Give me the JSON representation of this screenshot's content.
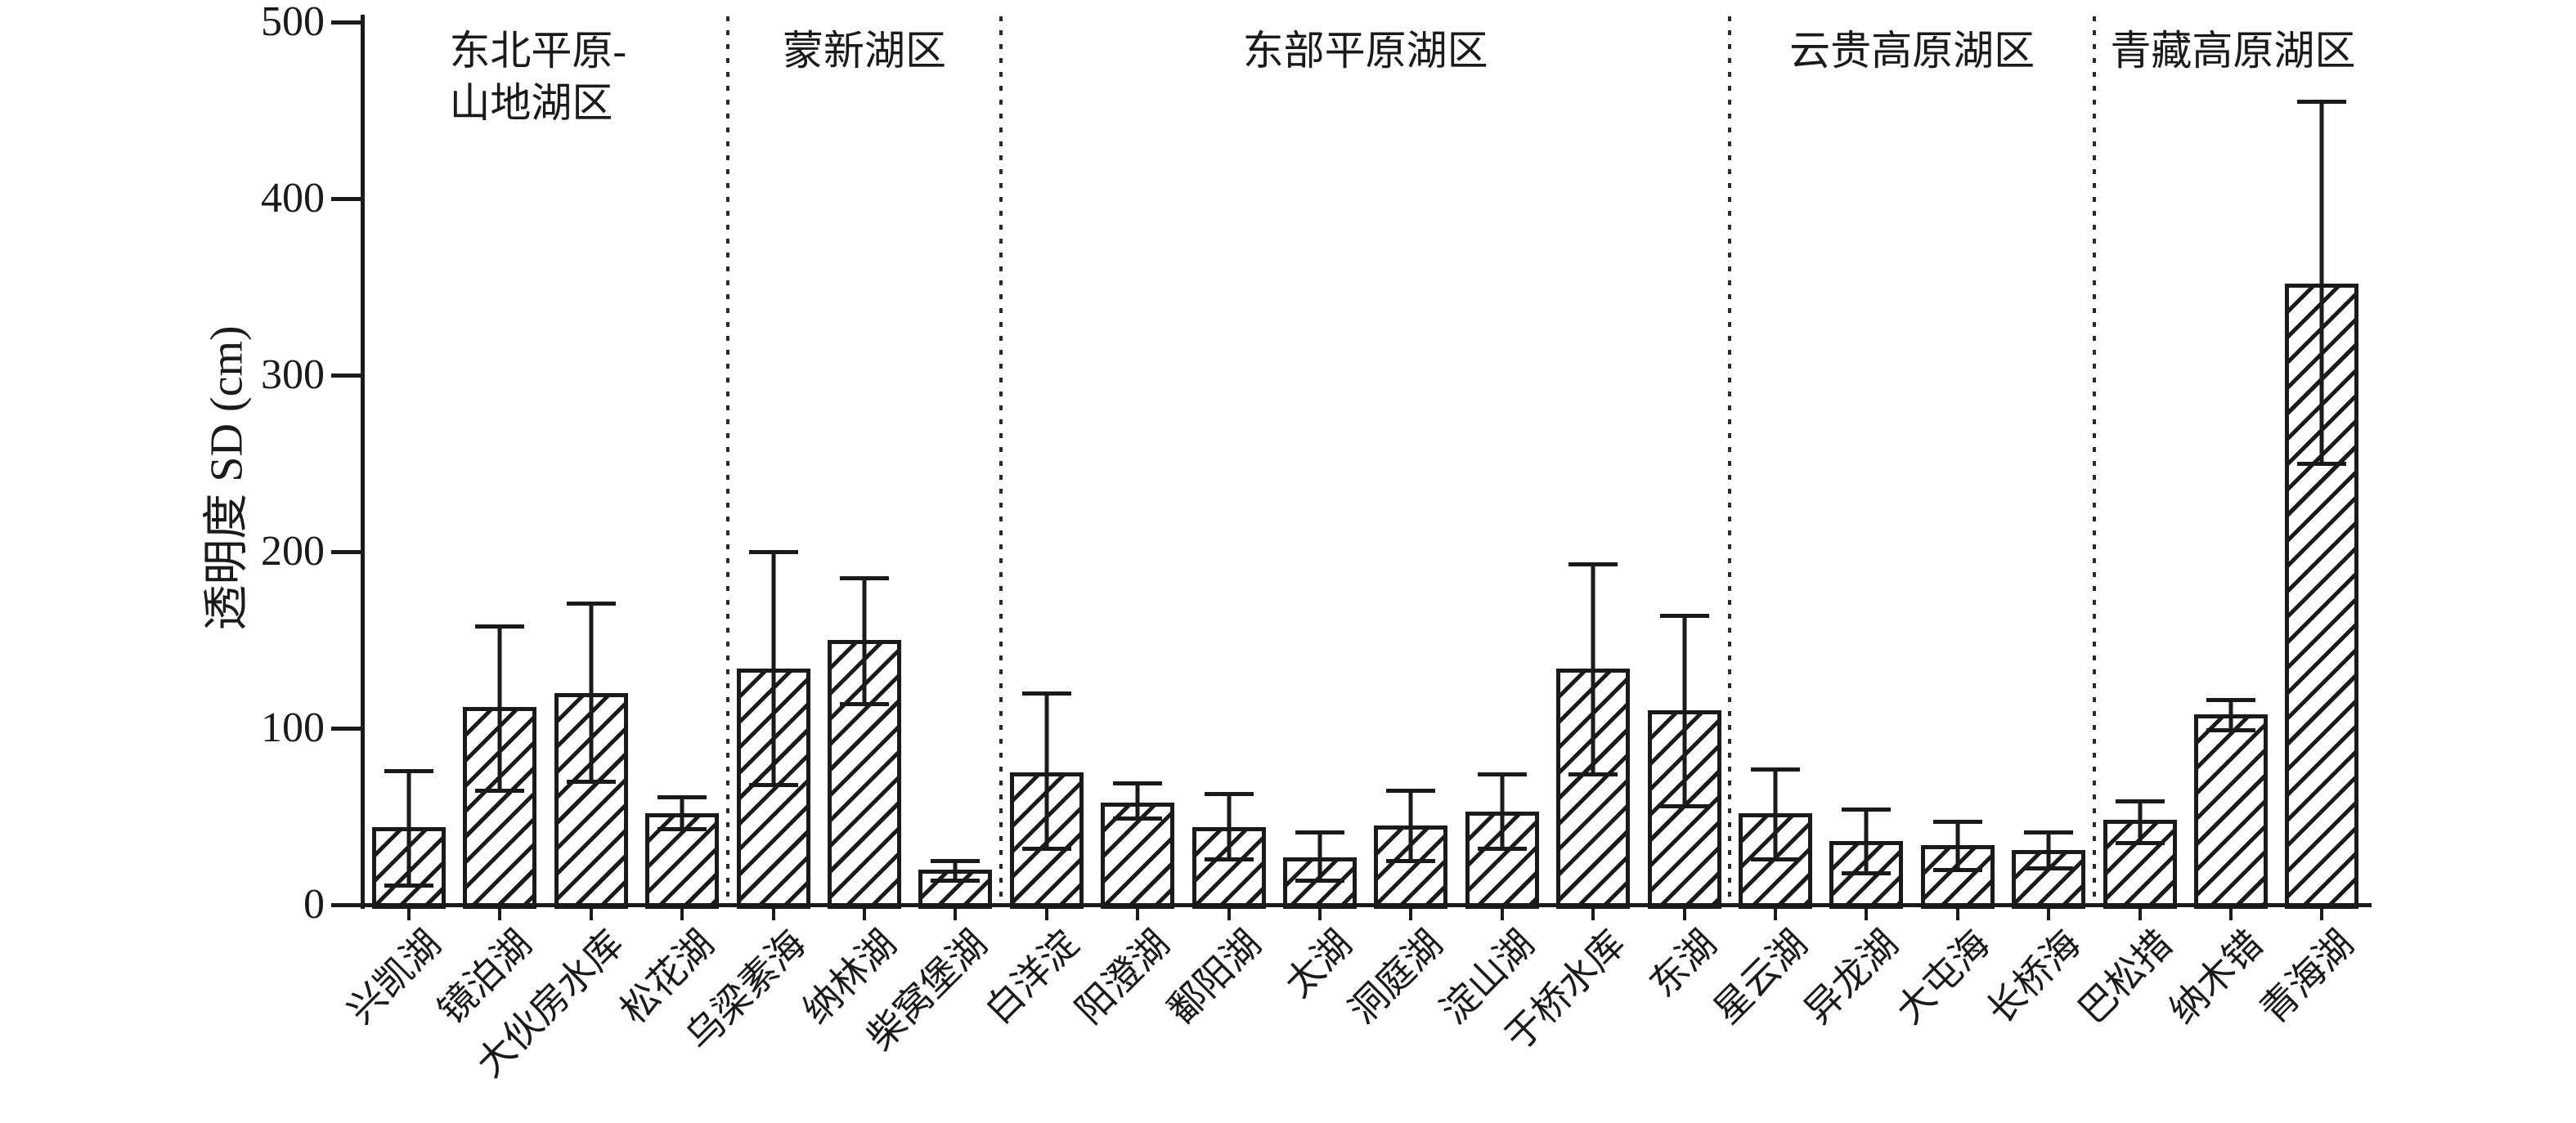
{
  "page": {
    "background": "#ffffff",
    "ink_color": "#1a1a1a"
  },
  "chart_data": {
    "type": "bar",
    "title": "",
    "xlabel": "",
    "ylabel": "透明度 SD (cm)",
    "ylim": [
      0,
      500
    ],
    "y_ticks": [
      0,
      100,
      200,
      300,
      400,
      500
    ],
    "grid": false,
    "legend": null,
    "bar_style": {
      "fill": "diagonal-hatch",
      "hatch_direction": "/",
      "edge_color": "#1a1a1a",
      "fill_background": "#ffffff"
    },
    "error_bars": "vertical whiskers with caps (upper and lower)",
    "region_separator_style": "vertical dotted line",
    "x_tick_label_rotation_deg": 45,
    "regions": [
      {
        "label": "东北平原-山地湖区",
        "label_lines": [
          "东北平原-",
          "山地湖区"
        ],
        "lakes": [
          {
            "name": "兴凯湖",
            "value": 44,
            "whisker_low": 11,
            "whisker_high": 76
          },
          {
            "name": "镜泊湖",
            "value": 112,
            "whisker_low": 65,
            "whisker_high": 158
          },
          {
            "name": "大伙房水库",
            "value": 120,
            "whisker_low": 70,
            "whisker_high": 171
          },
          {
            "name": "松花湖",
            "value": 52,
            "whisker_low": 43,
            "whisker_high": 61
          }
        ]
      },
      {
        "label": "蒙新湖区",
        "label_lines": [
          "蒙新湖区"
        ],
        "lakes": [
          {
            "name": "乌梁素海",
            "value": 134,
            "whisker_low": 68,
            "whisker_high": 200
          },
          {
            "name": "纳林湖",
            "value": 150,
            "whisker_low": 114,
            "whisker_high": 185
          },
          {
            "name": "柴窝堡湖",
            "value": 20,
            "whisker_low": 14,
            "whisker_high": 25
          }
        ]
      },
      {
        "label": "东部平原湖区",
        "label_lines": [
          "东部平原湖区"
        ],
        "lakes": [
          {
            "name": "白洋淀",
            "value": 75,
            "whisker_low": 32,
            "whisker_high": 120
          },
          {
            "name": "阳澄湖",
            "value": 58,
            "whisker_low": 49,
            "whisker_high": 69
          },
          {
            "name": "鄱阳湖",
            "value": 44,
            "whisker_low": 26,
            "whisker_high": 63
          },
          {
            "name": "太湖",
            "value": 27,
            "whisker_low": 14,
            "whisker_high": 41
          },
          {
            "name": "洞庭湖",
            "value": 45,
            "whisker_low": 25,
            "whisker_high": 65
          },
          {
            "name": "淀山湖",
            "value": 53,
            "whisker_low": 32,
            "whisker_high": 74
          },
          {
            "name": "于桥水库",
            "value": 134,
            "whisker_low": 74,
            "whisker_high": 193
          },
          {
            "name": "东湖",
            "value": 110,
            "whisker_low": 56,
            "whisker_high": 164
          }
        ]
      },
      {
        "label": "云贵高原湖区",
        "label_lines": [
          "云贵高原湖区"
        ],
        "lakes": [
          {
            "name": "星云湖",
            "value": 52,
            "whisker_low": 26,
            "whisker_high": 77
          },
          {
            "name": "异龙湖",
            "value": 36,
            "whisker_low": 18,
            "whisker_high": 54
          },
          {
            "name": "大屯海",
            "value": 34,
            "whisker_low": 20,
            "whisker_high": 47
          },
          {
            "name": "长桥海",
            "value": 31,
            "whisker_low": 21,
            "whisker_high": 41
          }
        ]
      },
      {
        "label": "青藏高原湖区",
        "label_lines": [
          "青藏高原湖区"
        ],
        "lakes": [
          {
            "name": "巴松措",
            "value": 48,
            "whisker_low": 35,
            "whisker_high": 59
          },
          {
            "name": "纳木错",
            "value": 108,
            "whisker_low": 99,
            "whisker_high": 116
          },
          {
            "name": "青海湖",
            "value": 352,
            "whisker_low": 250,
            "whisker_high": 455
          }
        ]
      }
    ]
  }
}
